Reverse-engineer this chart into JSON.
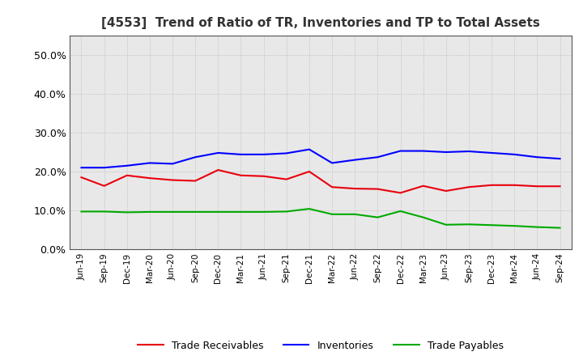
{
  "title": "[4553]  Trend of Ratio of TR, Inventories and TP to Total Assets",
  "labels": [
    "Jun-19",
    "Sep-19",
    "Dec-19",
    "Mar-20",
    "Jun-20",
    "Sep-20",
    "Dec-20",
    "Mar-21",
    "Jun-21",
    "Sep-21",
    "Dec-21",
    "Mar-22",
    "Jun-22",
    "Sep-22",
    "Dec-22",
    "Mar-23",
    "Jun-23",
    "Sep-23",
    "Dec-23",
    "Mar-24",
    "Jun-24",
    "Sep-24"
  ],
  "trade_receivables": [
    0.185,
    0.163,
    0.19,
    0.183,
    0.178,
    0.176,
    0.204,
    0.19,
    0.188,
    0.18,
    0.2,
    0.16,
    0.156,
    0.155,
    0.145,
    0.163,
    0.15,
    0.16,
    0.165,
    0.165,
    0.162,
    0.162
  ],
  "inventories": [
    0.21,
    0.21,
    0.215,
    0.222,
    0.22,
    0.237,
    0.248,
    0.244,
    0.244,
    0.247,
    0.257,
    0.222,
    0.23,
    0.237,
    0.253,
    0.253,
    0.25,
    0.252,
    0.248,
    0.244,
    0.237,
    0.233
  ],
  "trade_payables": [
    0.097,
    0.097,
    0.095,
    0.096,
    0.096,
    0.096,
    0.096,
    0.096,
    0.096,
    0.097,
    0.104,
    0.09,
    0.09,
    0.082,
    0.098,
    0.082,
    0.063,
    0.064,
    0.062,
    0.06,
    0.057,
    0.055
  ],
  "tr_color": "#e8000d",
  "inv_color": "#0000ff",
  "tp_color": "#00aa00",
  "ylim": [
    0.0,
    0.55
  ],
  "yticks": [
    0.0,
    0.1,
    0.2,
    0.3,
    0.4,
    0.5
  ],
  "bg_color": "#ffffff",
  "plot_bg_color": "#e8e8e8",
  "grid_color": "#aaaaaa",
  "legend_labels": [
    "Trade Receivables",
    "Inventories",
    "Trade Payables"
  ]
}
